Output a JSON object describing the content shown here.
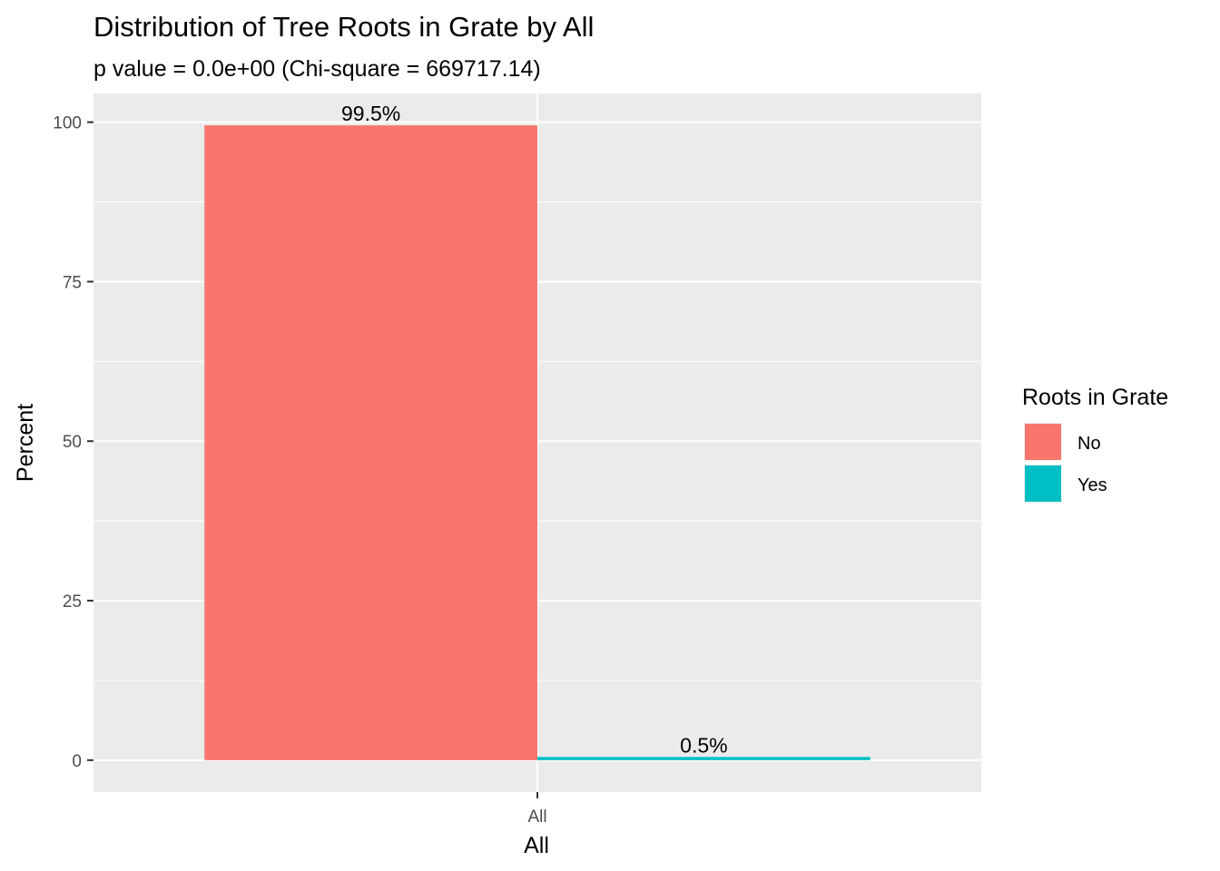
{
  "chart_data": {
    "type": "bar",
    "title": "Distribution of Tree Roots in Grate by All",
    "subtitle": "p value = 0.0e+00 (Chi-square = 669717.14)",
    "xlabel": "All",
    "ylabel": "Percent",
    "categories": [
      "All"
    ],
    "series": [
      {
        "name": "No",
        "values": [
          99.5
        ],
        "label": "99.5%",
        "color": "#F8766D"
      },
      {
        "name": "Yes",
        "values": [
          0.5
        ],
        "label": "0.5%",
        "color": "#00BFC4"
      }
    ],
    "ylim": [
      -5,
      104.5
    ],
    "yticks": [
      0,
      25,
      50,
      75,
      100
    ],
    "grid": true,
    "legend": {
      "title": "Roots in Grate",
      "position": "right"
    },
    "colors": {
      "panel": "#EBEBEB",
      "grid": "#FFFFFF"
    }
  }
}
